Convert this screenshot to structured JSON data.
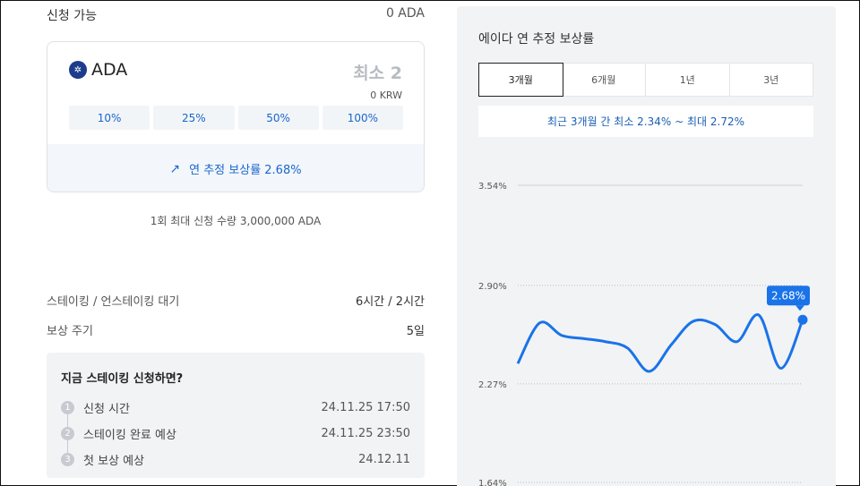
{
  "available": {
    "label": "신청 가능",
    "value": "0 ADA"
  },
  "order": {
    "coin_icon": "ada-logo-icon",
    "coin_icon_glyph": "✲",
    "coin": "ADA",
    "amount": "최소 2",
    "amount_sub": "0 KRW",
    "percent_buttons": [
      "10%",
      "25%",
      "50%",
      "100%"
    ],
    "rate_icon": "trend-up-icon",
    "rate_icon_glyph": "↗",
    "rate_text": "연 추정 보상률 2.68%"
  },
  "max_note": "1회 최대 신청 수량 3,000,000 ADA",
  "info": [
    {
      "label": "스테이킹 / 언스테이킹 대기",
      "value": "6시간 / 2시간"
    },
    {
      "label": "보상 주기",
      "value": "5일"
    }
  ],
  "apply": {
    "title": "지금 스테이킹 신청하면?",
    "steps": [
      {
        "num": "1",
        "label": "신청 시간",
        "value": "24.11.25 17:50"
      },
      {
        "num": "2",
        "label": "스테이킹 완료 예상",
        "value": "24.11.25 23:50"
      },
      {
        "num": "3",
        "label": "첫 보상 예상",
        "value": "24.12.11"
      }
    ]
  },
  "panel": {
    "title": "에이다 연 추정 보상률",
    "tabs": [
      "3개월",
      "6개월",
      "1년",
      "3년"
    ],
    "active_tab": 0,
    "range_note": "최근 3개월 간 최소 2.34% ~ 최대 2.72%"
  },
  "colors": {
    "accent": "#1a66cc",
    "line": "#1a73e8",
    "panel_bg": "#f2f3f5"
  },
  "chart_data": {
    "type": "line",
    "y_ticks": [
      "3.54%",
      "2.90%",
      "2.27%",
      "1.64%"
    ],
    "y_tick_values": [
      3.54,
      2.9,
      2.27,
      1.64
    ],
    "ylim": [
      1.64,
      3.54
    ],
    "grid": true,
    "series": [
      {
        "values": [
          2.4,
          2.66,
          2.58,
          2.56,
          2.54,
          2.5,
          2.35,
          2.52,
          2.67,
          2.65,
          2.54,
          2.71,
          2.37,
          2.68
        ]
      }
    ],
    "last_value_label": "2.68%"
  }
}
